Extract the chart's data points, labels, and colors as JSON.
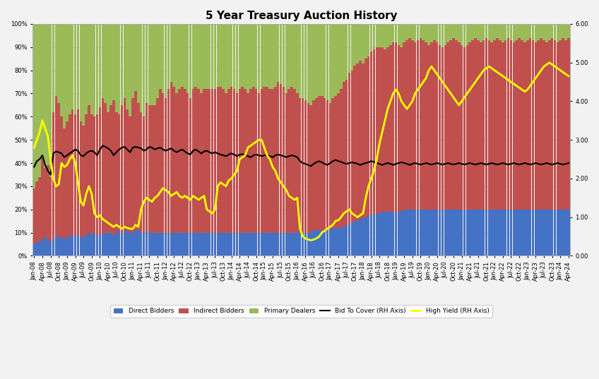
{
  "title": "5 Year Treasury Auction History",
  "colors": {
    "direct": "#4472c4",
    "indirect": "#c0504d",
    "primary": "#9bbb59",
    "bid_to_cover_line": "#000000",
    "high_yield_line": "#ffff00",
    "background": "#f2f2f2",
    "grid": "#d0d0d0"
  },
  "ylim_left": [
    0,
    1.0
  ],
  "ylim_right": [
    0.0,
    6.0
  ],
  "yticks_right": [
    0.0,
    1.0,
    2.0,
    3.0,
    4.0,
    5.0,
    6.0
  ],
  "legend_items": [
    "Direct Bidders",
    "Indirect Bidders",
    "Primary Dealers",
    "Bid To Cover (RH Axis)",
    "High Yield (RH Axis)"
  ],
  "direct_bidders": [
    0.05,
    0.06,
    0.06,
    0.07,
    0.08,
    0.07,
    0.06,
    0.07,
    0.09,
    0.08,
    0.08,
    0.07,
    0.08,
    0.09,
    0.08,
    0.09,
    0.09,
    0.08,
    0.08,
    0.09,
    0.1,
    0.09,
    0.1,
    0.09,
    0.09,
    0.1,
    0.1,
    0.1,
    0.1,
    0.09,
    0.1,
    0.11,
    0.1,
    0.1,
    0.11,
    0.1,
    0.1,
    0.11,
    0.11,
    0.1,
    0.1,
    0.11,
    0.1,
    0.1,
    0.1,
    0.1,
    0.1,
    0.1,
    0.1,
    0.1,
    0.1,
    0.1,
    0.1,
    0.1,
    0.1,
    0.1,
    0.1,
    0.1,
    0.1,
    0.1,
    0.1,
    0.1,
    0.1,
    0.1,
    0.1,
    0.1,
    0.1,
    0.1,
    0.1,
    0.1,
    0.1,
    0.1,
    0.1,
    0.1,
    0.1,
    0.1,
    0.1,
    0.1,
    0.1,
    0.1,
    0.1,
    0.1,
    0.1,
    0.1,
    0.1,
    0.1,
    0.1,
    0.1,
    0.1,
    0.1,
    0.1,
    0.1,
    0.1,
    0.1,
    0.1,
    0.1,
    0.1,
    0.1,
    0.1,
    0.1,
    0.1,
    0.1,
    0.11,
    0.11,
    0.11,
    0.11,
    0.11,
    0.11,
    0.11,
    0.12,
    0.12,
    0.12,
    0.12,
    0.13,
    0.13,
    0.14,
    0.14,
    0.15,
    0.15,
    0.16,
    0.16,
    0.17,
    0.17,
    0.18,
    0.18,
    0.18,
    0.18,
    0.19,
    0.19,
    0.19,
    0.19,
    0.19,
    0.19,
    0.19,
    0.19,
    0.2,
    0.2,
    0.2,
    0.2,
    0.2,
    0.2,
    0.2,
    0.2,
    0.2,
    0.2,
    0.2,
    0.2,
    0.2,
    0.2,
    0.2,
    0.2,
    0.2,
    0.2,
    0.2,
    0.2,
    0.2,
    0.2,
    0.2,
    0.2,
    0.2,
    0.2,
    0.2,
    0.2,
    0.2,
    0.2,
    0.2,
    0.2,
    0.2,
    0.2,
    0.2,
    0.2,
    0.2,
    0.2,
    0.2,
    0.2,
    0.2,
    0.2,
    0.2,
    0.2,
    0.2,
    0.2,
    0.2,
    0.2,
    0.2,
    0.2,
    0.2,
    0.2,
    0.2,
    0.2,
    0.2,
    0.2,
    0.2,
    0.2,
    0.2,
    0.2,
    0.2
  ],
  "indirect_bidders": [
    0.24,
    0.26,
    0.28,
    0.35,
    0.3,
    0.32,
    0.28,
    0.55,
    0.6,
    0.58,
    0.52,
    0.48,
    0.5,
    0.52,
    0.55,
    0.52,
    0.54,
    0.5,
    0.48,
    0.52,
    0.55,
    0.52,
    0.5,
    0.52,
    0.55,
    0.58,
    0.56,
    0.52,
    0.55,
    0.58,
    0.52,
    0.5,
    0.55,
    0.58,
    0.52,
    0.5,
    0.58,
    0.6,
    0.55,
    0.52,
    0.5,
    0.55,
    0.55,
    0.55,
    0.55,
    0.58,
    0.62,
    0.6,
    0.58,
    0.62,
    0.65,
    0.63,
    0.6,
    0.62,
    0.63,
    0.62,
    0.6,
    0.58,
    0.62,
    0.63,
    0.62,
    0.6,
    0.62,
    0.62,
    0.62,
    0.62,
    0.62,
    0.63,
    0.63,
    0.62,
    0.6,
    0.62,
    0.63,
    0.62,
    0.6,
    0.62,
    0.63,
    0.62,
    0.6,
    0.62,
    0.63,
    0.62,
    0.6,
    0.62,
    0.63,
    0.63,
    0.62,
    0.62,
    0.63,
    0.65,
    0.64,
    0.63,
    0.6,
    0.62,
    0.63,
    0.62,
    0.6,
    0.58,
    0.58,
    0.57,
    0.56,
    0.55,
    0.56,
    0.57,
    0.58,
    0.58,
    0.57,
    0.56,
    0.55,
    0.56,
    0.57,
    0.58,
    0.6,
    0.62,
    0.63,
    0.65,
    0.66,
    0.67,
    0.68,
    0.68,
    0.67,
    0.68,
    0.69,
    0.7,
    0.71,
    0.72,
    0.72,
    0.71,
    0.7,
    0.71,
    0.72,
    0.73,
    0.73,
    0.72,
    0.71,
    0.72,
    0.73,
    0.74,
    0.73,
    0.72,
    0.73,
    0.74,
    0.73,
    0.72,
    0.71,
    0.72,
    0.73,
    0.72,
    0.71,
    0.7,
    0.71,
    0.72,
    0.73,
    0.74,
    0.73,
    0.72,
    0.71,
    0.7,
    0.71,
    0.72,
    0.73,
    0.74,
    0.73,
    0.72,
    0.73,
    0.74,
    0.73,
    0.72,
    0.73,
    0.74,
    0.73,
    0.72,
    0.73,
    0.74,
    0.73,
    0.72,
    0.73,
    0.74,
    0.73,
    0.72,
    0.73,
    0.74,
    0.73,
    0.72,
    0.73,
    0.74,
    0.73,
    0.72,
    0.73,
    0.74,
    0.73,
    0.72,
    0.73,
    0.74,
    0.73,
    0.74
  ],
  "bid_to_cover": [
    2.3,
    2.45,
    2.5,
    2.6,
    2.35,
    2.2,
    2.1,
    2.65,
    2.7,
    2.68,
    2.65,
    2.55,
    2.6,
    2.65,
    2.7,
    2.75,
    2.72,
    2.6,
    2.58,
    2.65,
    2.7,
    2.72,
    2.68,
    2.6,
    2.75,
    2.85,
    2.82,
    2.78,
    2.72,
    2.6,
    2.68,
    2.75,
    2.8,
    2.82,
    2.75,
    2.68,
    2.8,
    2.82,
    2.8,
    2.78,
    2.72,
    2.75,
    2.82,
    2.8,
    2.75,
    2.78,
    2.8,
    2.75,
    2.72,
    2.75,
    2.78,
    2.72,
    2.68,
    2.72,
    2.75,
    2.7,
    2.65,
    2.62,
    2.72,
    2.75,
    2.7,
    2.65,
    2.7,
    2.72,
    2.68,
    2.65,
    2.68,
    2.65,
    2.62,
    2.6,
    2.58,
    2.62,
    2.65,
    2.62,
    2.58,
    2.62,
    2.63,
    2.6,
    2.58,
    2.55,
    2.6,
    2.62,
    2.6,
    2.58,
    2.6,
    2.6,
    2.58,
    2.55,
    2.6,
    2.62,
    2.6,
    2.58,
    2.55,
    2.58,
    2.6,
    2.58,
    2.55,
    2.45,
    2.4,
    2.38,
    2.35,
    2.32,
    2.38,
    2.42,
    2.45,
    2.42,
    2.38,
    2.35,
    2.4,
    2.45,
    2.48,
    2.45,
    2.43,
    2.4,
    2.38,
    2.4,
    2.42,
    2.4,
    2.38,
    2.35,
    2.38,
    2.4,
    2.42,
    2.45,
    2.43,
    2.4,
    2.38,
    2.35,
    2.38,
    2.4,
    2.38,
    2.35,
    2.38,
    2.4,
    2.42,
    2.4,
    2.38,
    2.35,
    2.38,
    2.4,
    2.38,
    2.36,
    2.38,
    2.4,
    2.38,
    2.36,
    2.38,
    2.4,
    2.38,
    2.36,
    2.38,
    2.4,
    2.38,
    2.36,
    2.38,
    2.4,
    2.38,
    2.36,
    2.38,
    2.4,
    2.38,
    2.36,
    2.38,
    2.4,
    2.38,
    2.36,
    2.38,
    2.4,
    2.38,
    2.36,
    2.38,
    2.4,
    2.38,
    2.36,
    2.38,
    2.4,
    2.38,
    2.36,
    2.38,
    2.4,
    2.38,
    2.36,
    2.38,
    2.4,
    2.38,
    2.36,
    2.38,
    2.4,
    2.38,
    2.36,
    2.38,
    2.4,
    2.38,
    2.36,
    2.38,
    2.4
  ],
  "high_yield": [
    2.8,
    3.0,
    3.2,
    3.5,
    3.3,
    3.1,
    2.5,
    2.0,
    1.8,
    1.85,
    2.4,
    2.3,
    2.35,
    2.5,
    2.6,
    2.4,
    1.9,
    1.4,
    1.3,
    1.6,
    1.8,
    1.6,
    1.1,
    1.0,
    1.05,
    0.95,
    0.9,
    0.85,
    0.8,
    0.75,
    0.8,
    0.75,
    0.7,
    0.75,
    0.72,
    0.7,
    0.7,
    0.8,
    0.75,
    1.2,
    1.4,
    1.5,
    1.45,
    1.4,
    1.5,
    1.55,
    1.65,
    1.75,
    1.7,
    1.65,
    1.55,
    1.6,
    1.65,
    1.55,
    1.5,
    1.55,
    1.5,
    1.45,
    1.55,
    1.5,
    1.45,
    1.5,
    1.55,
    1.2,
    1.15,
    1.1,
    1.2,
    1.8,
    1.9,
    1.85,
    1.8,
    1.95,
    2.0,
    2.1,
    2.2,
    2.5,
    2.55,
    2.6,
    2.8,
    2.85,
    2.9,
    2.95,
    3.0,
    3.0,
    2.8,
    2.6,
    2.5,
    2.3,
    2.2,
    2.0,
    1.9,
    1.8,
    1.7,
    1.55,
    1.5,
    1.45,
    1.5,
    0.7,
    0.5,
    0.45,
    0.42,
    0.4,
    0.42,
    0.45,
    0.5,
    0.6,
    0.65,
    0.7,
    0.75,
    0.8,
    0.9,
    0.92,
    1.0,
    1.1,
    1.15,
    1.2,
    1.1,
    1.05,
    1.0,
    1.05,
    1.1,
    1.5,
    1.8,
    2.0,
    2.2,
    2.5,
    2.9,
    3.2,
    3.5,
    3.8,
    4.0,
    4.2,
    4.3,
    4.2,
    4.0,
    3.9,
    3.8,
    3.9,
    4.0,
    4.2,
    4.3,
    4.4,
    4.5,
    4.6,
    4.8,
    4.9,
    4.8,
    4.7,
    4.6,
    4.5,
    4.4,
    4.3,
    4.2,
    4.1,
    4.0,
    3.9,
    4.0,
    4.1,
    4.2,
    4.3,
    4.4,
    4.5,
    4.6,
    4.7,
    4.8,
    4.85,
    4.9,
    4.85,
    4.8,
    4.75,
    4.7,
    4.65,
    4.6,
    4.55,
    4.5,
    4.45,
    4.4,
    4.35,
    4.3,
    4.25,
    4.3,
    4.4,
    4.5,
    4.6,
    4.7,
    4.8,
    4.9,
    4.95,
    5.0,
    4.95,
    4.9,
    4.85,
    4.8,
    4.75,
    4.7,
    4.65
  ],
  "date_labels_every": 3,
  "show_labels": [
    "Jan-08",
    "Apr-08",
    "Jul-08",
    "Oct-08",
    "Jan-09",
    "Apr-09",
    "Jul-09",
    "Oct-09",
    "Jan-10",
    "Apr-10",
    "Jul-10",
    "Oct-10",
    "Jan-11",
    "Apr-11",
    "Jul-11",
    "Oct-11",
    "Jan-12",
    "Apr-12",
    "Jul-12",
    "Oct-12",
    "Jan-13",
    "Apr-13",
    "Jul-13",
    "Oct-13",
    "Jan-14",
    "Apr-14",
    "Jul-14",
    "Oct-14",
    "Jan-15",
    "Apr-15",
    "Jul-15",
    "Oct-15",
    "Jan-16",
    "Apr-16",
    "Jul-16",
    "Oct-16",
    "Jan-17",
    "Apr-17",
    "Jul-17",
    "Oct-17",
    "Jan-18",
    "Apr-18",
    "Jul-18",
    "Oct-18",
    "Jan-19",
    "Apr-19",
    "Jul-19",
    "Oct-19",
    "Jan-20",
    "Apr-20",
    "Jul-20",
    "Oct-20",
    "Jan-21",
    "Apr-21",
    "Jul-21",
    "Oct-21",
    "Jan-22",
    "Apr-22",
    "Jul-22",
    "Oct-22",
    "Jan-23",
    "Apr-23",
    "Jul-23",
    "Oct-23",
    "Jan-24",
    "Apr-24"
  ]
}
